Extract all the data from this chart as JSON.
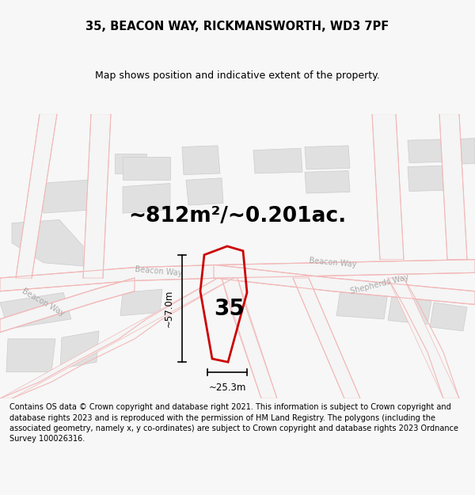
{
  "title": "35, BEACON WAY, RICKMANSWORTH, WD3 7PF",
  "subtitle": "Map shows position and indicative extent of the property.",
  "area_text": "~812m²/~0.201ac.",
  "number_label": "35",
  "dim_width": "~25.3m",
  "dim_height": "~57.0m",
  "footer": "Contains OS data © Crown copyright and database right 2021. This information is subject to Crown copyright and database rights 2023 and is reproduced with the permission of HM Land Registry. The polygons (including the associated geometry, namely x, y co-ordinates) are subject to Crown copyright and database rights 2023 Ordnance Survey 100026316.",
  "bg_color": "#f7f7f7",
  "map_bg": "#ffffff",
  "road_color": "#f2b8b8",
  "road_band_color": "#f0f0f0",
  "block_fill": "#e0e0e0",
  "block_edge": "#cccccc",
  "plot_edge_color": "#cc0000",
  "title_fontsize": 10.5,
  "subtitle_fontsize": 9,
  "area_fontsize": 19,
  "number_fontsize": 20,
  "road_label_fontsize": 7,
  "footer_fontsize": 7,
  "dim_fontsize": 8.5,
  "road_lw": 0.8,
  "road_band_lw": 6.0
}
